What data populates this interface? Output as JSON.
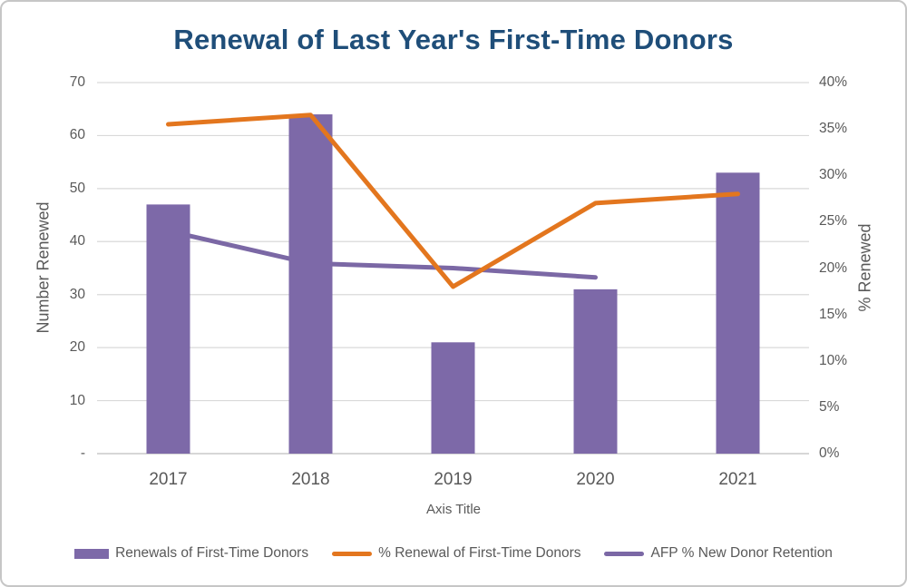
{
  "chart_data": {
    "type": "bar",
    "subtype": "combo-bar-line",
    "title": "Renewal of Last Year's First-Time Donors",
    "categories": [
      "2017",
      "2018",
      "2019",
      "2020",
      "2021"
    ],
    "series": [
      {
        "name": "Renewals of First-Time Donors",
        "type": "bar",
        "axis": "left",
        "color": "#7D69A8",
        "values": [
          47,
          64,
          21,
          31,
          53
        ]
      },
      {
        "name": "% Renewal of First-Time Donors",
        "type": "line",
        "axis": "right",
        "color": "#E3761E",
        "values": [
          35.5,
          36.5,
          18,
          27,
          28
        ]
      },
      {
        "name": "AFP % New Donor Retention",
        "type": "line",
        "axis": "right",
        "color": "#7B68A5",
        "behind": true,
        "values": [
          24,
          20.5,
          20,
          19,
          null
        ]
      }
    ],
    "left_axis": {
      "title": "Number Renewed",
      "min": 0,
      "max": 70,
      "step": 10,
      "tick_labels": [
        "70",
        "60",
        "50",
        "40",
        "30",
        "20",
        "10",
        "-"
      ]
    },
    "right_axis": {
      "title": "% Renewed",
      "min": 0,
      "max": 40,
      "step": 5,
      "tick_labels": [
        "40%",
        "35%",
        "30%",
        "25%",
        "20%",
        "15%",
        "10%",
        "5%",
        "0%"
      ]
    },
    "x_axis": {
      "title": "Axis Title"
    },
    "legend_position": "bottom",
    "grid": true,
    "colors": {
      "title_text": "#1F4E79",
      "axis_text": "#595959",
      "gridline": "#D9D9D9",
      "baseline": "#BFBFBF"
    }
  }
}
